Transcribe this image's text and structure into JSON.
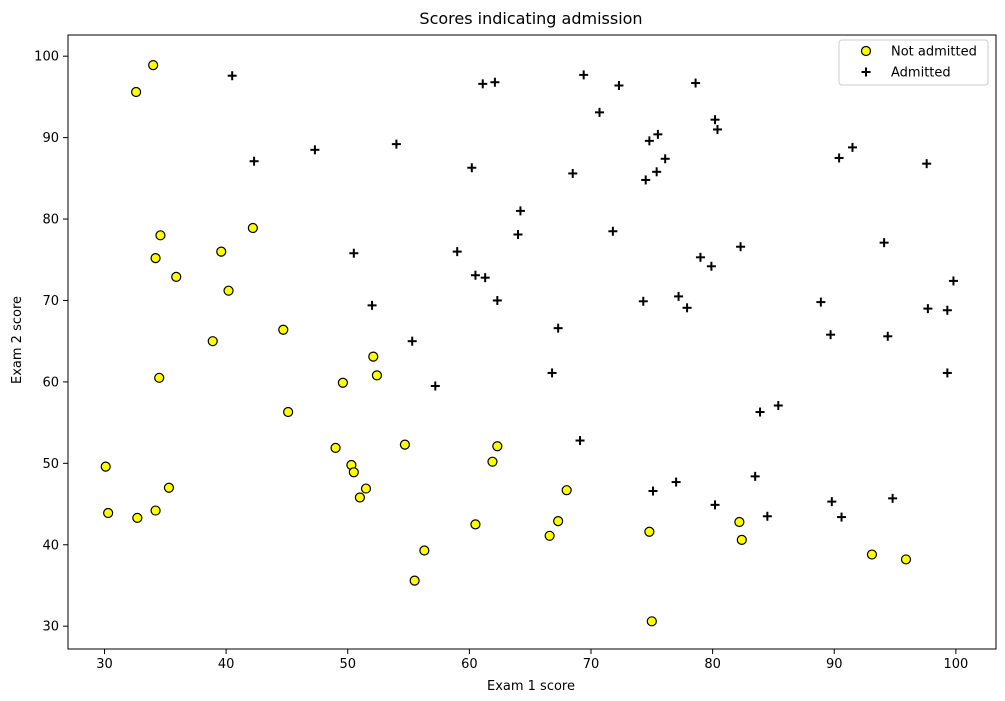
{
  "chart_data": {
    "type": "scatter",
    "title": "Scores indicating admission",
    "xlabel": "Exam 1 score",
    "ylabel": "Exam 2 score",
    "xlim": [
      27,
      103.3
    ],
    "ylim": [
      27.2,
      102.6
    ],
    "xticks": [
      30,
      40,
      50,
      60,
      70,
      80,
      90,
      100
    ],
    "yticks": [
      30,
      40,
      50,
      60,
      70,
      80,
      90,
      100
    ],
    "grid": false,
    "legend_position": "top-right",
    "series": [
      {
        "name": "Not admitted",
        "marker": "circle",
        "color": "#ffff00",
        "edgecolor": "#000000",
        "points": [
          [
            34.0,
            98.9
          ],
          [
            32.6,
            95.6
          ],
          [
            42.2,
            78.9
          ],
          [
            34.6,
            78.0
          ],
          [
            39.6,
            76.0
          ],
          [
            34.2,
            75.2
          ],
          [
            35.9,
            72.9
          ],
          [
            40.2,
            71.2
          ],
          [
            44.7,
            66.4
          ],
          [
            38.9,
            65.0
          ],
          [
            52.1,
            63.1
          ],
          [
            34.5,
            60.5
          ],
          [
            52.4,
            60.8
          ],
          [
            49.6,
            59.9
          ],
          [
            45.1,
            56.3
          ],
          [
            54.7,
            52.3
          ],
          [
            62.3,
            52.1
          ],
          [
            49.0,
            51.9
          ],
          [
            61.9,
            50.2
          ],
          [
            30.1,
            49.6
          ],
          [
            50.3,
            49.8
          ],
          [
            50.5,
            48.9
          ],
          [
            35.3,
            47.0
          ],
          [
            51.5,
            46.9
          ],
          [
            68.0,
            46.7
          ],
          [
            51.0,
            45.8
          ],
          [
            30.3,
            43.9
          ],
          [
            34.2,
            44.2
          ],
          [
            32.7,
            43.3
          ],
          [
            67.3,
            42.9
          ],
          [
            60.5,
            42.5
          ],
          [
            82.2,
            42.8
          ],
          [
            74.8,
            41.6
          ],
          [
            66.6,
            41.1
          ],
          [
            82.4,
            40.6
          ],
          [
            56.3,
            39.3
          ],
          [
            93.1,
            38.8
          ],
          [
            95.9,
            38.2
          ],
          [
            55.5,
            35.6
          ],
          [
            75.0,
            30.6
          ]
        ]
      },
      {
        "name": "Admitted",
        "marker": "plus",
        "color": "#000000",
        "points": [
          [
            40.5,
            97.6
          ],
          [
            61.1,
            96.6
          ],
          [
            62.1,
            96.8
          ],
          [
            69.4,
            97.7
          ],
          [
            72.3,
            96.4
          ],
          [
            78.6,
            96.7
          ],
          [
            70.7,
            93.1
          ],
          [
            80.2,
            92.2
          ],
          [
            80.4,
            91.0
          ],
          [
            75.5,
            90.4
          ],
          [
            74.8,
            89.6
          ],
          [
            54.0,
            89.2
          ],
          [
            91.5,
            88.8
          ],
          [
            47.3,
            88.5
          ],
          [
            90.4,
            87.5
          ],
          [
            76.1,
            87.4
          ],
          [
            42.3,
            87.1
          ],
          [
            97.6,
            86.8
          ],
          [
            60.2,
            86.3
          ],
          [
            75.4,
            85.8
          ],
          [
            68.5,
            85.6
          ],
          [
            74.5,
            84.8
          ],
          [
            64.2,
            81.0
          ],
          [
            71.8,
            78.5
          ],
          [
            64.0,
            78.1
          ],
          [
            94.1,
            77.1
          ],
          [
            82.3,
            76.6
          ],
          [
            59.0,
            76.0
          ],
          [
            50.5,
            75.8
          ],
          [
            79.0,
            75.3
          ],
          [
            79.9,
            74.2
          ],
          [
            60.5,
            73.1
          ],
          [
            61.3,
            72.8
          ],
          [
            99.8,
            72.4
          ],
          [
            77.2,
            70.5
          ],
          [
            62.3,
            70.0
          ],
          [
            74.3,
            69.9
          ],
          [
            88.9,
            69.8
          ],
          [
            52.0,
            69.4
          ],
          [
            77.9,
            69.1
          ],
          [
            97.7,
            69.0
          ],
          [
            99.3,
            68.8
          ],
          [
            67.3,
            66.6
          ],
          [
            89.7,
            65.8
          ],
          [
            94.4,
            65.6
          ],
          [
            55.3,
            65.0
          ],
          [
            66.8,
            61.1
          ],
          [
            99.3,
            61.1
          ],
          [
            57.2,
            59.5
          ],
          [
            85.4,
            57.1
          ],
          [
            83.9,
            56.3
          ],
          [
            69.1,
            52.8
          ],
          [
            83.5,
            48.4
          ],
          [
            77.0,
            47.7
          ],
          [
            75.1,
            46.6
          ],
          [
            94.8,
            45.7
          ],
          [
            89.8,
            45.3
          ],
          [
            80.2,
            44.9
          ],
          [
            90.6,
            43.4
          ],
          [
            84.5,
            43.5
          ]
        ]
      }
    ]
  }
}
